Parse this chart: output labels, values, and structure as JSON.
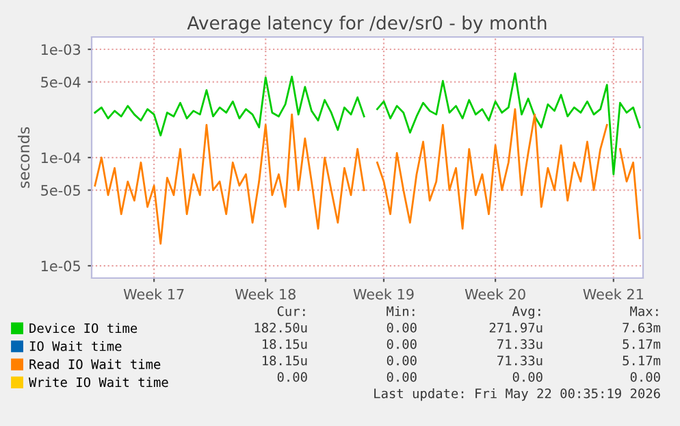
{
  "chart_data": {
    "type": "line",
    "title": "Average latency for /dev/sr0 - by month",
    "ylabel": "seconds",
    "log": "y",
    "grid": true,
    "legend": "bottom",
    "categories": [
      null,
      null,
      null,
      null,
      null,
      null,
      null,
      null,
      null,
      "Week 17",
      null,
      null,
      null,
      null,
      null,
      null,
      null,
      null,
      null,
      null,
      null,
      null,
      null,
      null,
      null,
      null,
      "Week 18",
      null,
      null,
      null,
      null,
      null,
      null,
      null,
      null,
      null,
      null,
      null,
      null,
      null,
      null,
      null,
      null,
      null,
      "Week 19",
      null,
      null,
      null,
      null,
      null,
      null,
      null,
      null,
      null,
      null,
      null,
      null,
      null,
      null,
      null,
      null,
      "Week 20",
      null,
      null,
      null,
      null,
      null,
      null,
      null,
      null,
      null,
      null,
      null,
      null,
      null,
      null,
      null,
      null,
      null,
      "Week 21",
      null,
      null,
      null,
      null
    ],
    "ylim": [
      7.7e-06,
      0.0013
    ],
    "yticks": [
      {
        "value": 1e-05,
        "label": "1e-05"
      },
      {
        "value": 5e-05,
        "label": "5e-05"
      },
      {
        "value": 0.0001,
        "label": "1e-04"
      },
      {
        "value": 0.0005,
        "label": "5e-04"
      },
      {
        "value": 0.001,
        "label": "1e-03"
      }
    ],
    "series": [
      {
        "name": "Device IO time",
        "color": "#00cc00",
        "values": [
          0.00026,
          0.00029,
          0.00023,
          0.00027,
          0.00024,
          0.0003,
          0.00025,
          0.00022,
          0.00028,
          0.00025,
          0.00016,
          0.00026,
          0.00024,
          0.00032,
          0.00023,
          0.00027,
          0.00025,
          0.00042,
          0.00024,
          0.00029,
          0.00026,
          0.00033,
          0.00023,
          0.00028,
          0.00025,
          0.00019,
          0.00055,
          0.00026,
          0.00024,
          0.00031,
          0.00056,
          0.00025,
          0.00045,
          0.00027,
          0.00022,
          0.00034,
          0.00026,
          0.00018,
          0.00029,
          0.00025,
          0.00036,
          0.00024,
          null,
          0.00028,
          0.00033,
          0.00023,
          0.0003,
          0.00026,
          0.00017,
          0.00024,
          0.00032,
          0.00027,
          0.00025,
          0.00051,
          0.00026,
          0.0003,
          0.00023,
          0.00034,
          0.00025,
          0.00028,
          0.00022,
          0.00033,
          0.00026,
          0.00029,
          0.0006,
          0.00025,
          0.00035,
          0.00024,
          0.00019,
          0.00031,
          0.00027,
          0.00038,
          0.00024,
          0.00029,
          0.00026,
          0.00033,
          0.00025,
          0.00028,
          0.00047,
          7e-05,
          0.00032,
          0.00026,
          0.00029,
          0.00019
        ]
      },
      {
        "name": "IO Wait time",
        "color": "#0066b3",
        "values": [
          null,
          null,
          null,
          null,
          null,
          null,
          null,
          null,
          null,
          null,
          null,
          null,
          null,
          null,
          null,
          null,
          null,
          null,
          null,
          null,
          null,
          null,
          null,
          null,
          null,
          null,
          null,
          null,
          null,
          null,
          null,
          null,
          null,
          null,
          null,
          null,
          null,
          null,
          null,
          null,
          null,
          null,
          null,
          null,
          null,
          null,
          null,
          null,
          null,
          null,
          null,
          null,
          null,
          null,
          null,
          null,
          null,
          null,
          null,
          null,
          null,
          null,
          null,
          null,
          null,
          null,
          null,
          null,
          null,
          null,
          null,
          null,
          null,
          null,
          null,
          null,
          null,
          null,
          null,
          null,
          null,
          null,
          null,
          null
        ]
      },
      {
        "name": "Read IO Wait time",
        "color": "#ff8000",
        "values": [
          5.5e-05,
          0.0001,
          4.5e-05,
          8e-05,
          3e-05,
          6e-05,
          4e-05,
          9e-05,
          3.5e-05,
          5.5e-05,
          1.6e-05,
          6.5e-05,
          4.5e-05,
          0.00012,
          3e-05,
          7e-05,
          4.5e-05,
          0.0002,
          5e-05,
          6e-05,
          3e-05,
          9e-05,
          5.5e-05,
          7e-05,
          2.5e-05,
          6e-05,
          0.0002,
          4.5e-05,
          7e-05,
          3.5e-05,
          0.00025,
          5e-05,
          0.00015,
          6e-05,
          2.2e-05,
          0.0001,
          5e-05,
          2.5e-05,
          8e-05,
          4.5e-05,
          0.00012,
          5e-05,
          null,
          9e-05,
          6e-05,
          3e-05,
          0.00011,
          5e-05,
          2.5e-05,
          7e-05,
          0.00014,
          4e-05,
          6e-05,
          0.0002,
          5e-05,
          8e-05,
          2.2e-05,
          0.00012,
          4.5e-05,
          7e-05,
          3e-05,
          0.00013,
          5e-05,
          9e-05,
          0.00028,
          4.5e-05,
          0.00011,
          0.00025,
          3.5e-05,
          8e-05,
          5e-05,
          0.00013,
          4e-05,
          9e-05,
          6e-05,
          0.00014,
          5e-05,
          0.00012,
          0.0002,
          null,
          0.00012,
          6e-05,
          9e-05,
          1.8e-05
        ]
      },
      {
        "name": "Write IO Wait time",
        "color": "#ffcc00",
        "values": [
          null,
          null,
          null,
          null,
          null,
          null,
          null,
          null,
          null,
          null,
          null,
          null,
          null,
          null,
          null,
          null,
          null,
          null,
          null,
          null,
          null,
          null,
          null,
          null,
          null,
          null,
          null,
          null,
          null,
          null,
          null,
          null,
          null,
          null,
          null,
          null,
          null,
          null,
          null,
          null,
          null,
          null,
          null,
          null,
          null,
          null,
          null,
          null,
          null,
          null,
          null,
          null,
          null,
          null,
          null,
          null,
          null,
          null,
          null,
          null,
          null,
          null,
          null,
          null,
          null,
          null,
          null,
          null,
          null,
          null,
          null,
          null,
          null,
          null,
          null,
          null,
          null,
          null,
          null,
          null,
          null,
          null,
          null,
          null
        ]
      }
    ],
    "annotations": [
      "Cur:",
      "Min:",
      "Avg:",
      "Max:",
      "182.50u",
      "0.00",
      "271.97u",
      "7.63m",
      "18.15u",
      "0.00",
      "71.33u",
      "5.17m",
      "18.15u",
      "0.00",
      "71.33u",
      "5.17m",
      "0.00",
      "0.00",
      "0.00",
      "0.00",
      "Last update: Fri May 22 00:35:19 2026"
    ]
  }
}
